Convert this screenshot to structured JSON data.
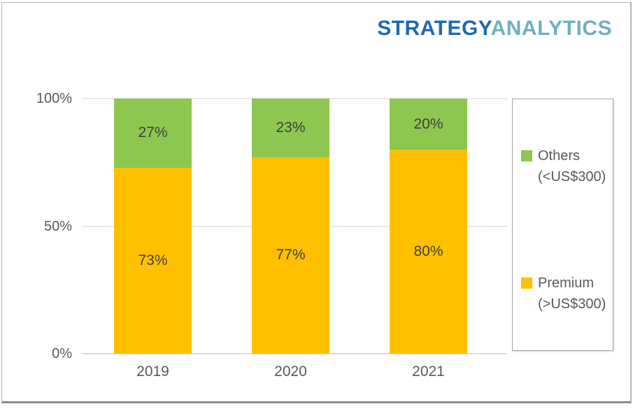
{
  "logo": {
    "part1": "STRATEGY",
    "part2": "ANALYTICS",
    "part1_color": "#1E68B2",
    "part2_color": "#6FB0BE"
  },
  "chart_data": {
    "type": "bar",
    "stacked": true,
    "title": "",
    "xlabel": "",
    "ylabel": "",
    "categories": [
      "2019",
      "2020",
      "2021"
    ],
    "series": [
      {
        "name": "Premium (>US$300)",
        "color": "#FFC000",
        "values": [
          73,
          77,
          80
        ]
      },
      {
        "name": "Others (<US$300)",
        "color": "#8DC74F",
        "values": [
          27,
          23,
          20
        ]
      }
    ],
    "value_suffix": "%",
    "data_labels": true,
    "ylim": [
      0,
      100
    ],
    "yticks": [
      {
        "label": "0%",
        "value": 0
      },
      {
        "label": "50%",
        "value": 50
      },
      {
        "label": "100%",
        "value": 100
      }
    ],
    "grid": true,
    "grid_color": "#E8E8E8",
    "axis_line_color": "#D9D9D9",
    "label_color": "#404040",
    "tick_color": "#595959",
    "legend_position": "right",
    "legend": [
      {
        "label_line1": "Others",
        "label_line2": "(<US$300)",
        "color": "#8DC74F"
      },
      {
        "label_line1": "Premium",
        "label_line2": "(>US$300)",
        "color": "#FFC000"
      }
    ]
  }
}
